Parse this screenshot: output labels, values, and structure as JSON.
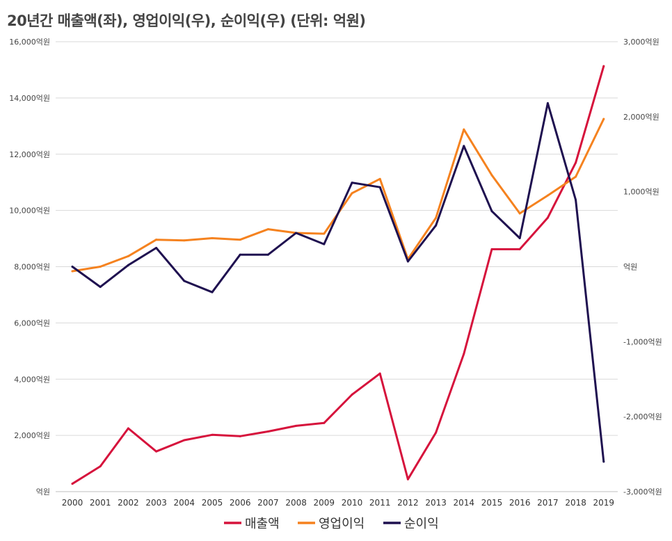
{
  "chart_data": {
    "type": "line",
    "title": "20년간 매출액(좌), 영업이익(우), 순이익(우) (단위: 억원)",
    "x": [
      "2000",
      "2001",
      "2002",
      "2003",
      "2004",
      "2005",
      "2006",
      "2007",
      "2008",
      "2009",
      "2010",
      "2011",
      "2012",
      "2013",
      "2014",
      "2015",
      "2016",
      "2017",
      "2018",
      "2019"
    ],
    "left_axis": {
      "ylim": [
        0,
        16000
      ],
      "ticks": [
        0,
        2000,
        4000,
        6000,
        8000,
        10000,
        12000,
        14000,
        16000
      ],
      "tick_labels": [
        "억원",
        "2,000억원",
        "4,000억원",
        "6,000억원",
        "8,000억원",
        "10,000억원",
        "12,000억원",
        "14,000억원",
        "16,000억원"
      ]
    },
    "right_axis": {
      "ylim": [
        -3000,
        3000
      ],
      "ticks": [
        -3000,
        -2000,
        -1000,
        0,
        1000,
        2000,
        3000
      ],
      "tick_labels": [
        "-3,000억원",
        "-2,000억원",
        "-1,000억원",
        "억원",
        "1,000억원",
        "2,000억원",
        "3,000억원"
      ]
    },
    "series": [
      {
        "name": "매출액",
        "axis": "left",
        "color": "#d6133c",
        "values": [
          280,
          900,
          2250,
          1430,
          1830,
          2020,
          1970,
          2140,
          2340,
          2440,
          3450,
          4200,
          440,
          2100,
          4900,
          8620,
          8620,
          9740,
          11700,
          15130
        ]
      },
      {
        "name": "영업이익",
        "axis": "right",
        "color": "#f5821f",
        "values": [
          -60,
          0,
          140,
          360,
          350,
          380,
          360,
          500,
          450,
          440,
          980,
          1170,
          100,
          650,
          1830,
          1220,
          710,
          950,
          1200,
          1970
        ]
      },
      {
        "name": "순이익",
        "axis": "right",
        "color": "#1f1150",
        "values": [
          0,
          -270,
          20,
          250,
          -190,
          -340,
          160,
          160,
          450,
          300,
          1120,
          1060,
          70,
          550,
          1610,
          740,
          380,
          2180,
          890,
          -2600
        ]
      }
    ],
    "grid": true,
    "legend": "bottom"
  }
}
